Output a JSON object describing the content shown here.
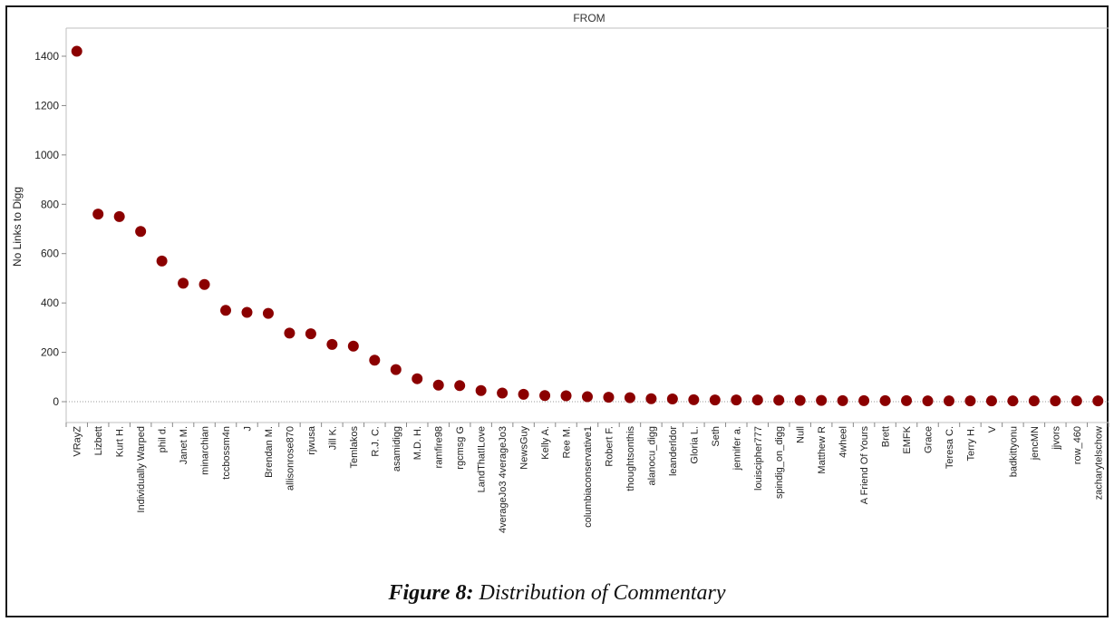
{
  "caption": {
    "figure_label": "Figure 8:",
    "figure_text": " Distribution of Commentary"
  },
  "chart_data": {
    "type": "scatter",
    "panel_header": "FROM",
    "xlabel": "",
    "ylabel": "No Links to Digg",
    "ylim": [
      -90,
      1500
    ],
    "yticks": [
      0,
      200,
      400,
      600,
      800,
      1000,
      1200,
      1400
    ],
    "grid": false,
    "zero_reference_line": true,
    "marker_color": "#8b0000",
    "categories": [
      "VRayZ",
      "Lizbett",
      "Kurt H.",
      "Individually Warped",
      "phil d.",
      "Janet M.",
      "minarchian",
      "tccbossm4n",
      "J",
      "Brendan M.",
      "allisonrose870",
      "rjwusa",
      "Jill K.",
      "Temlakos",
      "R.J. C.",
      "asamidigg",
      "M.D. H.",
      "ramfire98",
      "rgcmsg G",
      "LandThatILove",
      "4verageJo3 4verageJo3",
      "NewsGuy",
      "Kelly A.",
      "Ree M.",
      "columbiaconservative1",
      "Robert F.",
      "thoughtsonthis",
      "alanocu_digg",
      "leanderldor",
      "Gloria L.",
      "Seth",
      "jennifer a.",
      "louiscipher777",
      "spindig_on_digg",
      "Null",
      "Matthew R",
      "4wheel",
      "A Friend Of Yours",
      "Brett",
      "EMFK",
      "Grace",
      "Teresa C.",
      "Terry H.",
      "V",
      "badkittyonu",
      "jencMN",
      "jjvors",
      "row_460",
      "zacharytelschow"
    ],
    "values": [
      1420,
      760,
      750,
      690,
      570,
      480,
      475,
      370,
      362,
      358,
      278,
      275,
      232,
      225,
      168,
      130,
      93,
      67,
      65,
      45,
      35,
      30,
      25,
      24,
      20,
      18,
      16,
      12,
      11,
      8,
      7,
      7,
      7,
      6,
      5,
      5,
      4,
      4,
      4,
      4,
      3,
      3,
      3,
      3,
      3,
      3,
      3,
      3,
      3
    ]
  }
}
